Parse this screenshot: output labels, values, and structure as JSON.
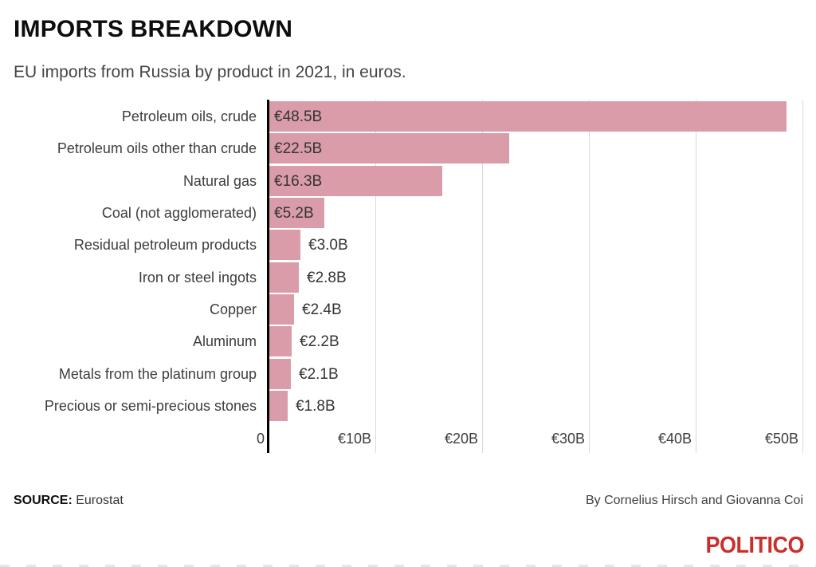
{
  "header": {
    "title": "IMPORTS BREAKDOWN",
    "subtitle": "EU imports from Russia by product in 2021, in euros."
  },
  "chart_data": {
    "type": "bar",
    "orientation": "horizontal",
    "title": "IMPORTS BREAKDOWN",
    "subtitle": "EU imports from Russia by product in 2021, in euros.",
    "unit": "billions of euros",
    "categories": [
      "Petroleum oils, crude",
      "Petroleum oils other than crude",
      "Natural gas",
      "Coal (not agglomerated)",
      "Residual petroleum products",
      "Iron or steel ingots",
      "Copper",
      "Aluminum",
      "Metals from the platinum group",
      "Precious or semi-precious stones"
    ],
    "values": [
      48.5,
      22.5,
      16.3,
      5.2,
      3.0,
      2.8,
      2.4,
      2.2,
      2.1,
      1.8
    ],
    "value_labels": [
      "€48.5B",
      "€22.5B",
      "€16.3B",
      "€5.2B",
      "€3.0B",
      "€2.8B",
      "€2.4B",
      "€2.2B",
      "€2.1B",
      "€1.8B"
    ],
    "x_ticks": [
      {
        "value": 0,
        "label": "0"
      },
      {
        "value": 10,
        "label": "€10B"
      },
      {
        "value": 20,
        "label": "€20B"
      },
      {
        "value": 30,
        "label": "€30B"
      },
      {
        "value": 40,
        "label": "€40B"
      },
      {
        "value": 50,
        "label": "€50B"
      }
    ],
    "xlim": [
      0,
      50
    ],
    "grid": true,
    "legend": false,
    "bar_color": "#d99ca8",
    "grid_color": "#d9d9d9",
    "axis_line_color": "#000000",
    "label_color": "#3d3d3d"
  },
  "footer": {
    "source_label": "SOURCE:",
    "source_value": "Eurostat",
    "byline": "By Cornelius Hirsch and Giovanna Coi",
    "logo_text": "POLITICO",
    "logo_color": "#c9302c"
  }
}
